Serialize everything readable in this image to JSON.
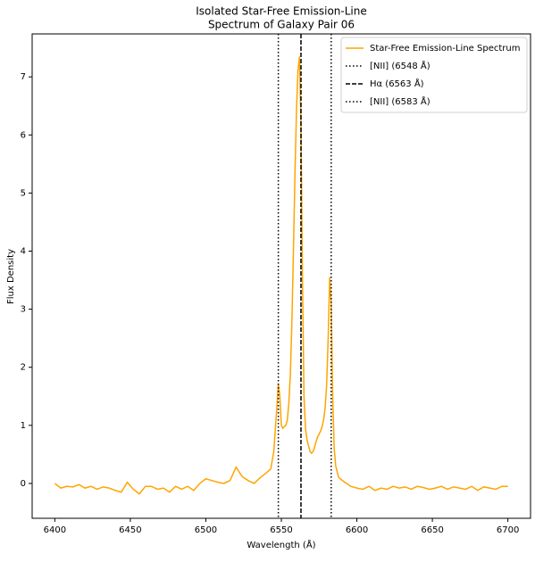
{
  "chart_data": {
    "type": "line",
    "title": [
      "Isolated Star-Free Emission-Line",
      "Spectrum of Galaxy Pair 06"
    ],
    "xlabel": "Wavelength (Å)",
    "ylabel": "Flux Density",
    "x": [
      6400,
      6404,
      6408,
      6412,
      6416,
      6420,
      6424,
      6428,
      6432,
      6436,
      6440,
      6444,
      6448,
      6452,
      6456,
      6460,
      6464,
      6468,
      6472,
      6476,
      6480,
      6484,
      6488,
      6492,
      6496,
      6500,
      6504,
      6508,
      6512,
      6516,
      6520,
      6524,
      6528,
      6532,
      6536,
      6540,
      6543,
      6545,
      6547,
      6548,
      6549,
      6550,
      6551,
      6552,
      6553,
      6554,
      6555,
      6556,
      6557,
      6558,
      6559,
      6560,
      6561,
      6562,
      6563,
      6564,
      6565,
      6566,
      6567,
      6568,
      6569,
      6570,
      6571,
      6572,
      6573,
      6574,
      6575,
      6576,
      6577,
      6578,
      6579,
      6580,
      6581,
      6582,
      6583,
      6584,
      6585,
      6586,
      6588,
      6592,
      6596,
      6600,
      6604,
      6608,
      6612,
      6616,
      6620,
      6624,
      6628,
      6632,
      6636,
      6640,
      6644,
      6648,
      6652,
      6656,
      6660,
      6664,
      6668,
      6672,
      6676,
      6680,
      6684,
      6688,
      6692,
      6696,
      6700
    ],
    "series": [
      {
        "name": "Star-Free Emission-Line Spectrum",
        "color": "#ffa500",
        "values": [
          0.0,
          -0.08,
          -0.05,
          -0.06,
          -0.02,
          -0.08,
          -0.05,
          -0.1,
          -0.06,
          -0.08,
          -0.12,
          -0.15,
          0.02,
          -0.1,
          -0.18,
          -0.05,
          -0.05,
          -0.1,
          -0.08,
          -0.15,
          -0.05,
          -0.1,
          -0.05,
          -0.12,
          0.0,
          0.08,
          0.05,
          0.02,
          0.0,
          0.05,
          0.28,
          0.12,
          0.05,
          0.0,
          0.1,
          0.18,
          0.25,
          0.55,
          1.3,
          1.72,
          1.5,
          1.0,
          0.95,
          0.98,
          1.0,
          1.1,
          1.4,
          1.9,
          2.8,
          4.0,
          5.3,
          6.4,
          7.1,
          7.35,
          6.2,
          3.5,
          1.5,
          0.95,
          0.75,
          0.65,
          0.55,
          0.52,
          0.55,
          0.62,
          0.72,
          0.8,
          0.85,
          0.9,
          0.98,
          1.1,
          1.3,
          1.7,
          2.5,
          3.55,
          3.1,
          1.5,
          0.6,
          0.3,
          0.1,
          0.02,
          -0.05,
          -0.08,
          -0.1,
          -0.05,
          -0.12,
          -0.08,
          -0.1,
          -0.05,
          -0.08,
          -0.06,
          -0.1,
          -0.05,
          -0.07,
          -0.1,
          -0.08,
          -0.05,
          -0.1,
          -0.06,
          -0.08,
          -0.1,
          -0.05,
          -0.12,
          -0.06,
          -0.08,
          -0.1,
          -0.05,
          -0.05
        ]
      }
    ],
    "vlines": [
      {
        "x": 6548,
        "label": "[NII] (6548 Å)",
        "style": "dotted",
        "color": "#000000"
      },
      {
        "x": 6563,
        "label": "Hα (6563 Å)",
        "style": "dashed",
        "color": "#000000"
      },
      {
        "x": 6583,
        "label": "[NII] (6583 Å)",
        "style": "dotted",
        "color": "#000000"
      }
    ],
    "xlim": [
      6385,
      6715
    ],
    "xticks": [
      6400,
      6450,
      6500,
      6550,
      6600,
      6650,
      6700
    ],
    "ylim": [
      -0.6,
      7.74
    ],
    "yticks": [
      0,
      1,
      2,
      3,
      4,
      5,
      6,
      7
    ],
    "grid": false,
    "legend": "upper right"
  }
}
